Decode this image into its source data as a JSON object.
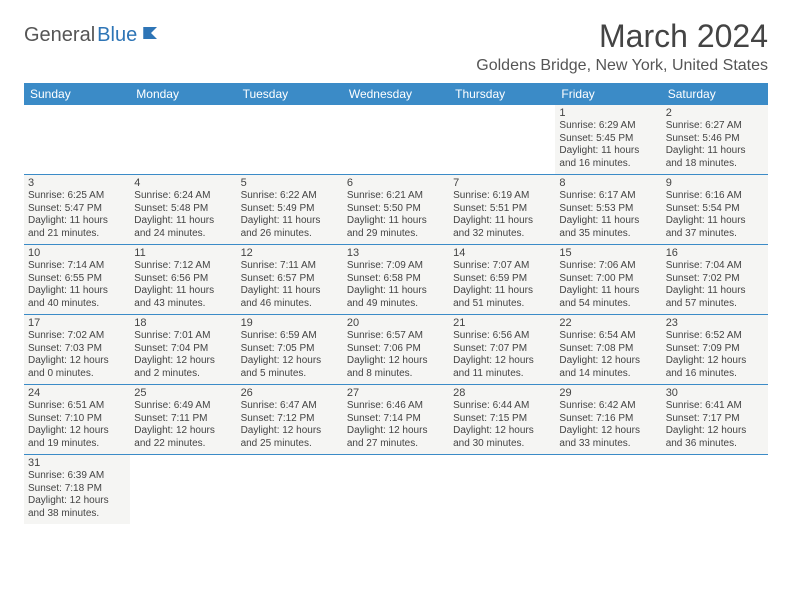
{
  "logo": {
    "part1": "General",
    "part2": "Blue"
  },
  "title": "March 2024",
  "location": "Goldens Bridge, New York, United States",
  "colors": {
    "header_bg": "#3b8bc7",
    "header_text": "#ffffff",
    "cell_bg": "#f5f5f3",
    "border": "#3b8bc7",
    "text": "#444444",
    "logo_gray": "#555555",
    "logo_blue": "#2e75b6"
  },
  "weekdays": [
    "Sunday",
    "Monday",
    "Tuesday",
    "Wednesday",
    "Thursday",
    "Friday",
    "Saturday"
  ],
  "weeks": [
    [
      null,
      null,
      null,
      null,
      null,
      {
        "n": "1",
        "sr": "Sunrise: 6:29 AM",
        "ss": "Sunset: 5:45 PM",
        "dl": "Daylight: 11 hours and 16 minutes."
      },
      {
        "n": "2",
        "sr": "Sunrise: 6:27 AM",
        "ss": "Sunset: 5:46 PM",
        "dl": "Daylight: 11 hours and 18 minutes."
      }
    ],
    [
      {
        "n": "3",
        "sr": "Sunrise: 6:25 AM",
        "ss": "Sunset: 5:47 PM",
        "dl": "Daylight: 11 hours and 21 minutes."
      },
      {
        "n": "4",
        "sr": "Sunrise: 6:24 AM",
        "ss": "Sunset: 5:48 PM",
        "dl": "Daylight: 11 hours and 24 minutes."
      },
      {
        "n": "5",
        "sr": "Sunrise: 6:22 AM",
        "ss": "Sunset: 5:49 PM",
        "dl": "Daylight: 11 hours and 26 minutes."
      },
      {
        "n": "6",
        "sr": "Sunrise: 6:21 AM",
        "ss": "Sunset: 5:50 PM",
        "dl": "Daylight: 11 hours and 29 minutes."
      },
      {
        "n": "7",
        "sr": "Sunrise: 6:19 AM",
        "ss": "Sunset: 5:51 PM",
        "dl": "Daylight: 11 hours and 32 minutes."
      },
      {
        "n": "8",
        "sr": "Sunrise: 6:17 AM",
        "ss": "Sunset: 5:53 PM",
        "dl": "Daylight: 11 hours and 35 minutes."
      },
      {
        "n": "9",
        "sr": "Sunrise: 6:16 AM",
        "ss": "Sunset: 5:54 PM",
        "dl": "Daylight: 11 hours and 37 minutes."
      }
    ],
    [
      {
        "n": "10",
        "sr": "Sunrise: 7:14 AM",
        "ss": "Sunset: 6:55 PM",
        "dl": "Daylight: 11 hours and 40 minutes."
      },
      {
        "n": "11",
        "sr": "Sunrise: 7:12 AM",
        "ss": "Sunset: 6:56 PM",
        "dl": "Daylight: 11 hours and 43 minutes."
      },
      {
        "n": "12",
        "sr": "Sunrise: 7:11 AM",
        "ss": "Sunset: 6:57 PM",
        "dl": "Daylight: 11 hours and 46 minutes."
      },
      {
        "n": "13",
        "sr": "Sunrise: 7:09 AM",
        "ss": "Sunset: 6:58 PM",
        "dl": "Daylight: 11 hours and 49 minutes."
      },
      {
        "n": "14",
        "sr": "Sunrise: 7:07 AM",
        "ss": "Sunset: 6:59 PM",
        "dl": "Daylight: 11 hours and 51 minutes."
      },
      {
        "n": "15",
        "sr": "Sunrise: 7:06 AM",
        "ss": "Sunset: 7:00 PM",
        "dl": "Daylight: 11 hours and 54 minutes."
      },
      {
        "n": "16",
        "sr": "Sunrise: 7:04 AM",
        "ss": "Sunset: 7:02 PM",
        "dl": "Daylight: 11 hours and 57 minutes."
      }
    ],
    [
      {
        "n": "17",
        "sr": "Sunrise: 7:02 AM",
        "ss": "Sunset: 7:03 PM",
        "dl": "Daylight: 12 hours and 0 minutes."
      },
      {
        "n": "18",
        "sr": "Sunrise: 7:01 AM",
        "ss": "Sunset: 7:04 PM",
        "dl": "Daylight: 12 hours and 2 minutes."
      },
      {
        "n": "19",
        "sr": "Sunrise: 6:59 AM",
        "ss": "Sunset: 7:05 PM",
        "dl": "Daylight: 12 hours and 5 minutes."
      },
      {
        "n": "20",
        "sr": "Sunrise: 6:57 AM",
        "ss": "Sunset: 7:06 PM",
        "dl": "Daylight: 12 hours and 8 minutes."
      },
      {
        "n": "21",
        "sr": "Sunrise: 6:56 AM",
        "ss": "Sunset: 7:07 PM",
        "dl": "Daylight: 12 hours and 11 minutes."
      },
      {
        "n": "22",
        "sr": "Sunrise: 6:54 AM",
        "ss": "Sunset: 7:08 PM",
        "dl": "Daylight: 12 hours and 14 minutes."
      },
      {
        "n": "23",
        "sr": "Sunrise: 6:52 AM",
        "ss": "Sunset: 7:09 PM",
        "dl": "Daylight: 12 hours and 16 minutes."
      }
    ],
    [
      {
        "n": "24",
        "sr": "Sunrise: 6:51 AM",
        "ss": "Sunset: 7:10 PM",
        "dl": "Daylight: 12 hours and 19 minutes."
      },
      {
        "n": "25",
        "sr": "Sunrise: 6:49 AM",
        "ss": "Sunset: 7:11 PM",
        "dl": "Daylight: 12 hours and 22 minutes."
      },
      {
        "n": "26",
        "sr": "Sunrise: 6:47 AM",
        "ss": "Sunset: 7:12 PM",
        "dl": "Daylight: 12 hours and 25 minutes."
      },
      {
        "n": "27",
        "sr": "Sunrise: 6:46 AM",
        "ss": "Sunset: 7:14 PM",
        "dl": "Daylight: 12 hours and 27 minutes."
      },
      {
        "n": "28",
        "sr": "Sunrise: 6:44 AM",
        "ss": "Sunset: 7:15 PM",
        "dl": "Daylight: 12 hours and 30 minutes."
      },
      {
        "n": "29",
        "sr": "Sunrise: 6:42 AM",
        "ss": "Sunset: 7:16 PM",
        "dl": "Daylight: 12 hours and 33 minutes."
      },
      {
        "n": "30",
        "sr": "Sunrise: 6:41 AM",
        "ss": "Sunset: 7:17 PM",
        "dl": "Daylight: 12 hours and 36 minutes."
      }
    ],
    [
      {
        "n": "31",
        "sr": "Sunrise: 6:39 AM",
        "ss": "Sunset: 7:18 PM",
        "dl": "Daylight: 12 hours and 38 minutes."
      },
      null,
      null,
      null,
      null,
      null,
      null
    ]
  ]
}
